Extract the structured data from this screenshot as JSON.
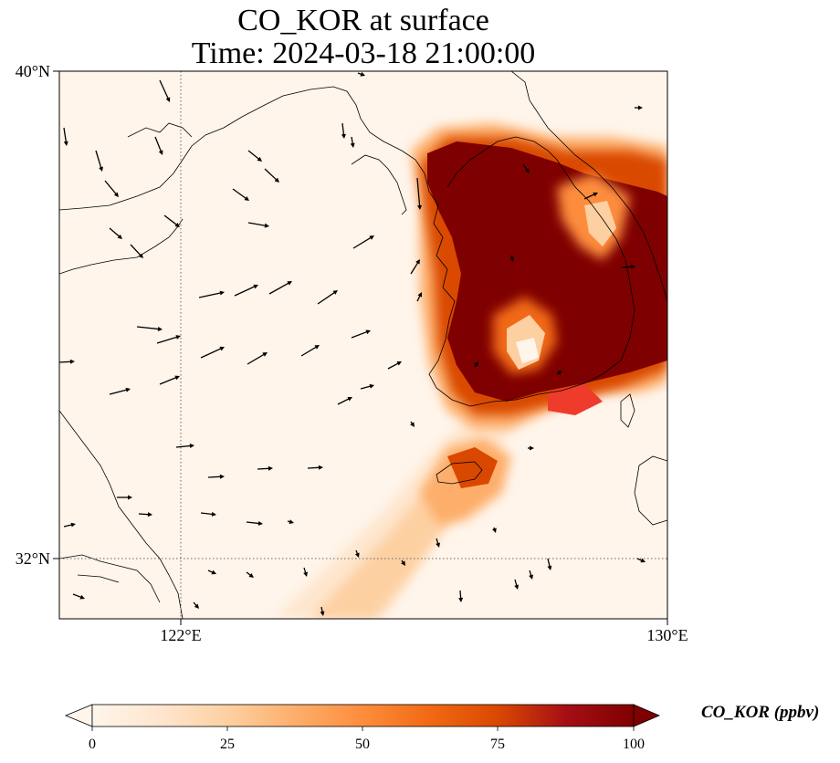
{
  "title": {
    "line1": "CO_KOR at surface",
    "line2": "Time: 2024-03-18 21:00:00"
  },
  "map": {
    "lon_range": [
      119.75,
      130.0
    ],
    "lat_range": [
      31.0,
      40.0
    ],
    "lat_ticks": [
      {
        "value": 40,
        "label": "40°N"
      },
      {
        "value": 32,
        "label": "32°N"
      }
    ],
    "lon_ticks": [
      {
        "value": 122,
        "label": "122°E"
      },
      {
        "value": 130,
        "label": "130°E"
      }
    ],
    "gridlines": {
      "lat": [
        32
      ],
      "lon": [
        122
      ],
      "style": "dotted"
    },
    "background_color": "#fff5eb",
    "coastline_color": "#000000",
    "wind_vectors": "black arrows"
  },
  "colorbar": {
    "title": "CO_KOR (ppbv)",
    "ticks": [
      "0",
      "25",
      "50",
      "75",
      "100"
    ],
    "range": [
      0,
      100
    ],
    "colormap": [
      "#fff5eb",
      "#fee6ce",
      "#fdd0a2",
      "#fdae6b",
      "#fd8d3c",
      "#f16913",
      "#d94801",
      "#a50f15",
      "#7f0000"
    ],
    "extend": "both"
  }
}
